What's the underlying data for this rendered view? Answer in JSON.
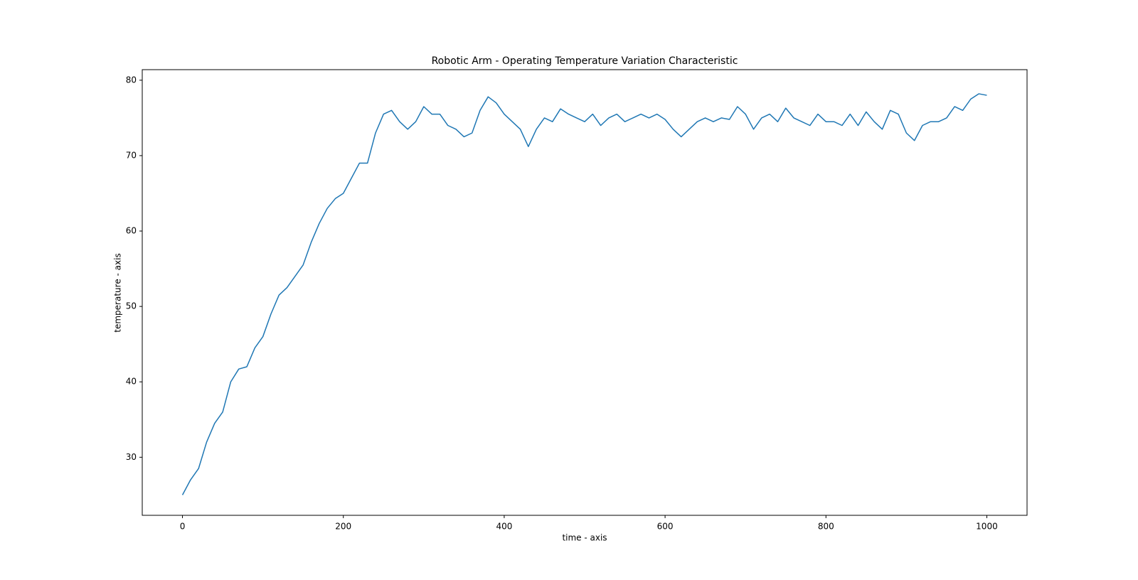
{
  "chart_data": {
    "type": "line",
    "title": "Robotic Arm - Operating Temperature Variation Characteristic",
    "xlabel": "time - axis",
    "ylabel": "temperature - axis",
    "color": "#1f77b4",
    "x": [
      0,
      10,
      20,
      30,
      40,
      50,
      60,
      70,
      80,
      90,
      100,
      110,
      120,
      130,
      140,
      150,
      160,
      170,
      180,
      190,
      200,
      210,
      220,
      230,
      240,
      250,
      260,
      270,
      280,
      290,
      300,
      310,
      320,
      330,
      340,
      350,
      360,
      370,
      380,
      390,
      400,
      410,
      420,
      430,
      440,
      450,
      460,
      470,
      480,
      490,
      500,
      510,
      520,
      530,
      540,
      550,
      560,
      570,
      580,
      590,
      600,
      610,
      620,
      630,
      640,
      650,
      660,
      670,
      680,
      690,
      700,
      710,
      720,
      730,
      740,
      750,
      760,
      770,
      780,
      790,
      800,
      810,
      820,
      830,
      840,
      850,
      860,
      870,
      880,
      890,
      900,
      910,
      920,
      930,
      940,
      950,
      960,
      970,
      980,
      990,
      1000
    ],
    "values": [
      25,
      27,
      28.5,
      32,
      34.5,
      36,
      40,
      41.7,
      42,
      44.5,
      46,
      49,
      51.5,
      52.5,
      54,
      55.5,
      58.5,
      61,
      63,
      64.3,
      65,
      67,
      69,
      69,
      73,
      75.5,
      76,
      74.5,
      73.5,
      74.5,
      76.5,
      75.5,
      75.5,
      74,
      73.5,
      72.5,
      73,
      76,
      77.8,
      77,
      75.5,
      74.5,
      73.5,
      71.2,
      73.5,
      75,
      74.5,
      76.2,
      75.5,
      75,
      74.5,
      75.5,
      74,
      75,
      75.5,
      74.5,
      75,
      75.5,
      75,
      75.5,
      74.8,
      73.5,
      72.5,
      73.5,
      74.5,
      75,
      74.5,
      75,
      74.8,
      76.5,
      75.5,
      73.5,
      75,
      75.5,
      74.5,
      76.3,
      75,
      74.5,
      74,
      75.5,
      74.5,
      74.5,
      74,
      75.5,
      74,
      75.8,
      74.5,
      73.5,
      76,
      75.5,
      73,
      72,
      74,
      74.5,
      74.5,
      75,
      76.5,
      76,
      77.5,
      78.2,
      78
    ],
    "xlim": [
      -50,
      1050
    ],
    "ylim": [
      22.3,
      81.4
    ],
    "xticks": [
      0,
      200,
      400,
      600,
      800,
      1000
    ],
    "yticks": [
      30,
      40,
      50,
      60,
      70,
      80
    ],
    "grid": false
  }
}
